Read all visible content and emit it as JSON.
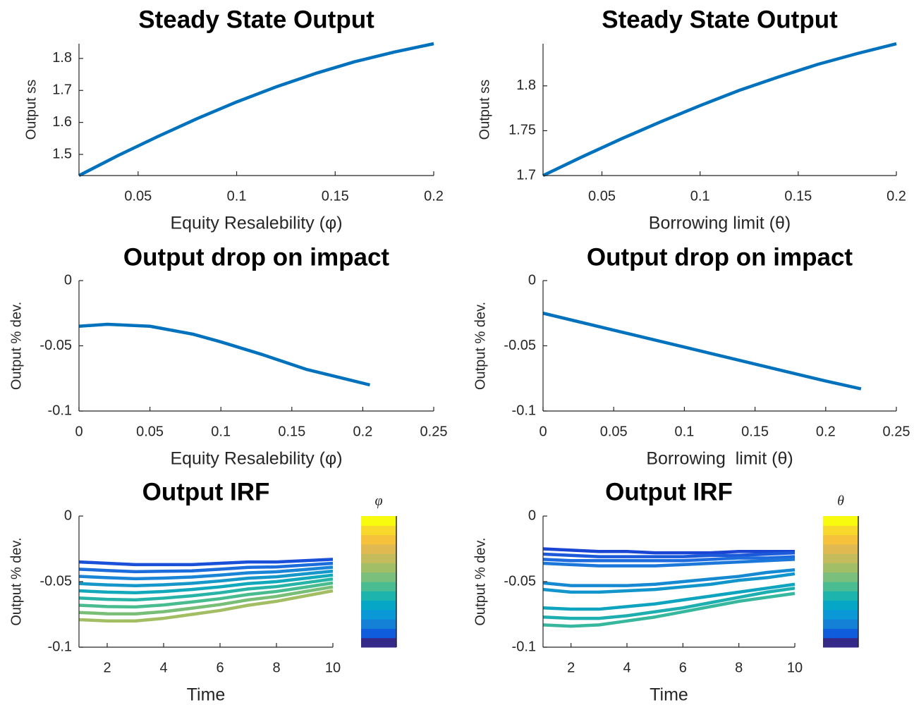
{
  "chart_data": [
    {
      "type": "line",
      "title": "Steady State Output",
      "xlabel": "Equity Resalebility (φ)",
      "ylabel": "Output ss",
      "x": [
        0.02,
        0.04,
        0.06,
        0.08,
        0.1,
        0.12,
        0.14,
        0.16,
        0.18,
        0.2
      ],
      "series": [
        {
          "color": "#0072bd",
          "values": [
            1.434,
            1.497,
            1.556,
            1.612,
            1.664,
            1.711,
            1.753,
            1.79,
            1.82,
            1.846
          ]
        }
      ],
      "xlim": [
        0.02,
        0.2
      ],
      "xticks": [
        0.05,
        0.1,
        0.15,
        0.2
      ],
      "ylim": [
        1.434,
        1.846
      ],
      "yticks": [
        1.5,
        1.6,
        1.7,
        1.8
      ]
    },
    {
      "type": "line",
      "title": "Steady State Output",
      "xlabel": "Borrowing limit (θ)",
      "ylabel": "Output ss",
      "x": [
        0.02,
        0.04,
        0.06,
        0.08,
        0.1,
        0.12,
        0.14,
        0.16,
        0.18,
        0.2
      ],
      "series": [
        {
          "color": "#0072bd",
          "values": [
            1.7,
            1.721,
            1.741,
            1.76,
            1.778,
            1.795,
            1.81,
            1.824,
            1.836,
            1.847
          ]
        }
      ],
      "xlim": [
        0.02,
        0.2
      ],
      "xticks": [
        0.05,
        0.1,
        0.15,
        0.2
      ],
      "ylim": [
        1.7,
        1.847
      ],
      "yticks": [
        1.7,
        1.75,
        1.8
      ]
    },
    {
      "type": "line",
      "title": "Output drop on impact",
      "xlabel": "Equity Resalebility (φ)",
      "ylabel": "Output % dev.",
      "x": [
        0,
        0.02,
        0.05,
        0.08,
        0.1,
        0.13,
        0.16,
        0.19,
        0.205
      ],
      "series": [
        {
          "color": "#0072bd",
          "values": [
            -0.035,
            -0.0335,
            -0.035,
            -0.041,
            -0.047,
            -0.057,
            -0.068,
            -0.076,
            -0.08
          ]
        }
      ],
      "xlim": [
        0,
        0.25
      ],
      "xticks": [
        0,
        0.05,
        0.1,
        0.15,
        0.2,
        0.25
      ],
      "ylim": [
        -0.1,
        0
      ],
      "yticks": [
        -0.1,
        -0.05,
        0
      ]
    },
    {
      "type": "line",
      "title": "Output drop on impact",
      "xlabel": "Borrowing  limit (θ)",
      "ylabel": "Output % dev.",
      "x": [
        0,
        0.05,
        0.1,
        0.15,
        0.2,
        0.225
      ],
      "series": [
        {
          "color": "#0072bd",
          "values": [
            -0.025,
            -0.038,
            -0.051,
            -0.064,
            -0.077,
            -0.083
          ]
        }
      ],
      "xlim": [
        0,
        0.25
      ],
      "xticks": [
        0,
        0.05,
        0.1,
        0.15,
        0.2,
        0.25
      ],
      "ylim": [
        -0.1,
        0
      ],
      "yticks": [
        -0.1,
        -0.05,
        0
      ]
    },
    {
      "type": "line",
      "title": "Output IRF",
      "xlabel": "Time",
      "ylabel": "Output % dev.",
      "x": [
        1,
        2,
        3,
        4,
        5,
        6,
        7,
        8,
        9,
        10
      ],
      "series": [
        {
          "color": "#1a4fd8",
          "values": [
            -0.035,
            -0.036,
            -0.037,
            -0.037,
            -0.037,
            -0.036,
            -0.035,
            -0.035,
            -0.034,
            -0.033
          ]
        },
        {
          "color": "#1c6cdc",
          "values": [
            -0.0405,
            -0.0415,
            -0.0424,
            -0.0421,
            -0.0418,
            -0.0405,
            -0.0391,
            -0.0388,
            -0.0374,
            -0.036
          ]
        },
        {
          "color": "#1a84d6",
          "values": [
            -0.046,
            -0.047,
            -0.0478,
            -0.0473,
            -0.0465,
            -0.045,
            -0.0433,
            -0.0425,
            -0.0408,
            -0.039
          ]
        },
        {
          "color": "#1597c9",
          "values": [
            -0.0515,
            -0.0525,
            -0.0531,
            -0.0524,
            -0.0513,
            -0.0495,
            -0.0474,
            -0.0463,
            -0.0441,
            -0.042
          ]
        },
        {
          "color": "#10a8ba",
          "values": [
            -0.057,
            -0.058,
            -0.0585,
            -0.0575,
            -0.056,
            -0.054,
            -0.0515,
            -0.05,
            -0.0475,
            -0.045
          ]
        },
        {
          "color": "#27b4a6",
          "values": [
            -0.0625,
            -0.0635,
            -0.0639,
            -0.0626,
            -0.0608,
            -0.0585,
            -0.0556,
            -0.0538,
            -0.0509,
            -0.048
          ]
        },
        {
          "color": "#48bc8f",
          "values": [
            -0.068,
            -0.069,
            -0.0693,
            -0.0678,
            -0.0655,
            -0.063,
            -0.0598,
            -0.0575,
            -0.0543,
            -0.051
          ]
        },
        {
          "color": "#78be77",
          "values": [
            -0.0735,
            -0.0745,
            -0.0746,
            -0.0729,
            -0.0703,
            -0.0675,
            -0.0639,
            -0.0613,
            -0.0576,
            -0.054
          ]
        },
        {
          "color": "#a2bd62",
          "values": [
            -0.079,
            -0.08,
            -0.08,
            -0.078,
            -0.075,
            -0.072,
            -0.068,
            -0.065,
            -0.061,
            -0.057
          ]
        }
      ],
      "xlim": [
        1,
        10
      ],
      "xticks": [
        2,
        4,
        6,
        8,
        10
      ],
      "ylim": [
        -0.1,
        0
      ],
      "yticks": [
        -0.1,
        -0.05,
        0
      ],
      "colorbar": {
        "label": "φ",
        "colors": [
          "#352a87",
          "#0f5cdd",
          "#1481d6",
          "#0a98d7",
          "#06a7c6",
          "#1cb4ac",
          "#49bc92",
          "#7abf7c",
          "#a2be67",
          "#c4bb5b",
          "#e1b951",
          "#f6c23c",
          "#f8d82b",
          "#f9fb0e"
        ]
      }
    },
    {
      "type": "line",
      "title": "Output IRF",
      "xlabel": "Time",
      "ylabel": "Output % dev.",
      "x": [
        1,
        2,
        3,
        4,
        5,
        6,
        7,
        8,
        9,
        10
      ],
      "series": [
        {
          "color": "#1a45d2",
          "values": [
            -0.025,
            -0.026,
            -0.027,
            -0.027,
            -0.028,
            -0.028,
            -0.028,
            -0.027,
            -0.027,
            -0.027
          ]
        },
        {
          "color": "#1c5ad9",
          "values": [
            -0.029,
            -0.03,
            -0.031,
            -0.031,
            -0.031,
            -0.031,
            -0.03,
            -0.03,
            -0.029,
            -0.028
          ]
        },
        {
          "color": "#1d6bdc",
          "values": [
            -0.033,
            -0.034,
            -0.034,
            -0.034,
            -0.034,
            -0.034,
            -0.033,
            -0.032,
            -0.032,
            -0.031
          ]
        },
        {
          "color": "#1b78da",
          "values": [
            -0.036,
            -0.037,
            -0.038,
            -0.038,
            -0.038,
            -0.037,
            -0.036,
            -0.035,
            -0.034,
            -0.033
          ]
        },
        {
          "color": "#1689d3",
          "values": [
            -0.051,
            -0.053,
            -0.053,
            -0.053,
            -0.052,
            -0.05,
            -0.048,
            -0.046,
            -0.043,
            -0.041
          ]
        },
        {
          "color": "#1295cb",
          "values": [
            -0.056,
            -0.058,
            -0.058,
            -0.057,
            -0.056,
            -0.054,
            -0.052,
            -0.049,
            -0.047,
            -0.044
          ]
        },
        {
          "color": "#0ea4bf",
          "values": [
            -0.07,
            -0.071,
            -0.071,
            -0.069,
            -0.067,
            -0.064,
            -0.061,
            -0.058,
            -0.055,
            -0.052
          ]
        },
        {
          "color": "#1daeb0",
          "values": [
            -0.077,
            -0.078,
            -0.078,
            -0.076,
            -0.073,
            -0.07,
            -0.066,
            -0.062,
            -0.058,
            -0.055
          ]
        },
        {
          "color": "#36b79e",
          "values": [
            -0.083,
            -0.084,
            -0.083,
            -0.08,
            -0.077,
            -0.073,
            -0.069,
            -0.065,
            -0.062,
            -0.059
          ]
        }
      ],
      "xlim": [
        1,
        10
      ],
      "xticks": [
        2,
        4,
        6,
        8,
        10
      ],
      "ylim": [
        -0.1,
        0
      ],
      "yticks": [
        -0.1,
        -0.05,
        0
      ],
      "colorbar": {
        "label": "θ",
        "colors": [
          "#352a87",
          "#0f5cdd",
          "#1481d6",
          "#0a98d7",
          "#06a7c6",
          "#1cb4ac",
          "#49bc92",
          "#7abf7c",
          "#a2be67",
          "#c4bb5b",
          "#e1b951",
          "#f6c23c",
          "#f8d82b",
          "#f9fb0e"
        ]
      }
    }
  ]
}
